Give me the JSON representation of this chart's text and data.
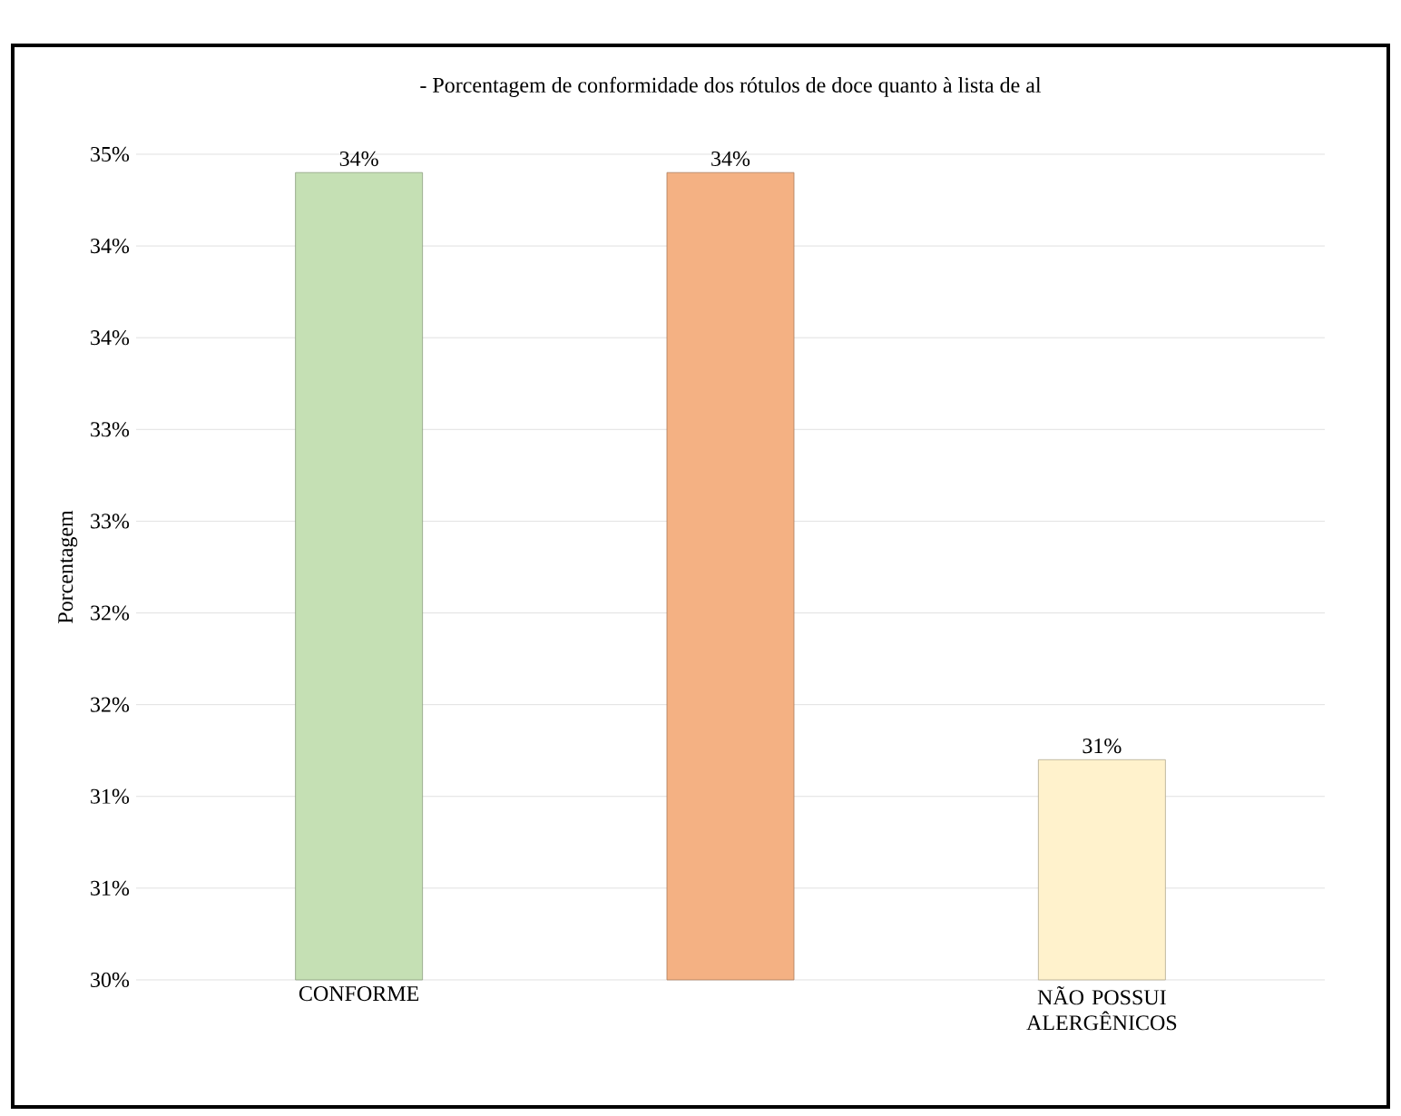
{
  "chart_data": {
    "type": "bar",
    "title": "- Porcentagem de conformidade dos rótulos de doce quanto à lista de al",
    "ylabel": "Porcentagem",
    "categories": [
      "CONFORME",
      null,
      "NÃO POSSUI ALERGÊNICOS"
    ],
    "values": [
      34.4,
      34.4,
      31.2
    ],
    "colors": [
      "#c5e0b4",
      "#f4b183",
      "#fff2cc"
    ],
    "value_labels": [
      "34%",
      "34%",
      "31%"
    ],
    "ylim": [
      30,
      34.5
    ],
    "yticks": [
      {
        "value": 30,
        "label": "30%"
      },
      {
        "value": 30.5,
        "label": "31%"
      },
      {
        "value": 31,
        "label": "31%"
      },
      {
        "value": 31.5,
        "label": "32%"
      },
      {
        "value": 32,
        "label": "32%"
      },
      {
        "value": 32.5,
        "label": "33%"
      },
      {
        "value": 33,
        "label": "33%"
      },
      {
        "value": 33.5,
        "label": "34%"
      },
      {
        "value": 34,
        "label": "34%"
      },
      {
        "value": 34.5,
        "label": "35%"
      }
    ],
    "grid": "y"
  }
}
